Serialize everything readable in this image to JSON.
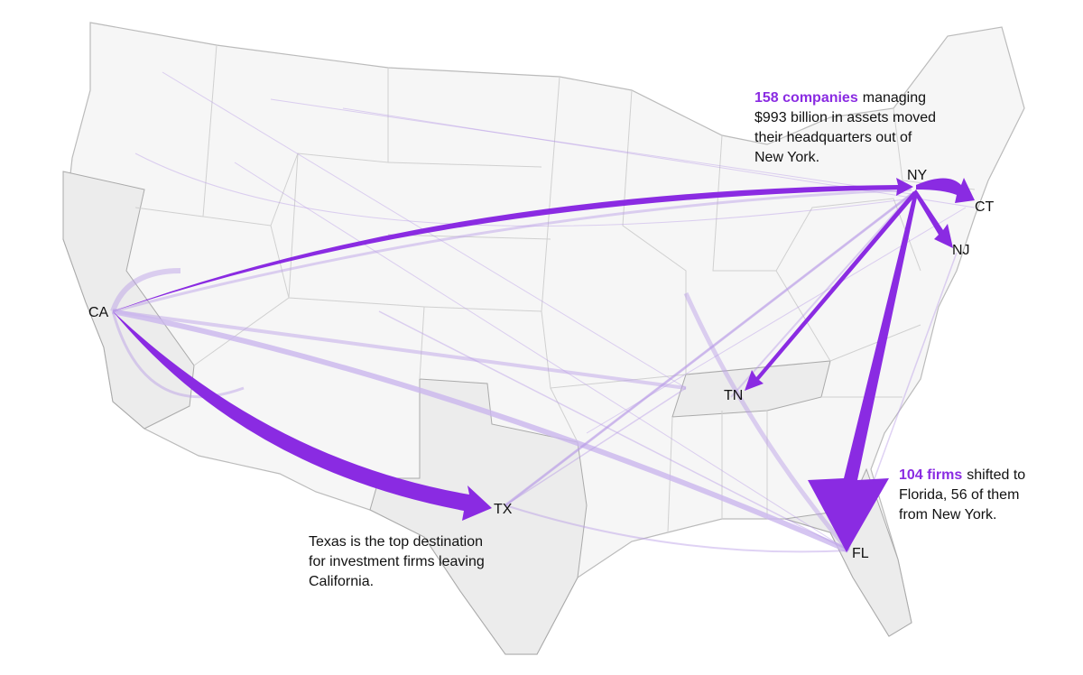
{
  "labels": [
    "NY",
    "CT",
    "NJ",
    "CA",
    "TN",
    "TX",
    "FL"
  ],
  "annotations": [
    {
      "highlight": "158 companies",
      "lines": [
        "managing",
        "$993 billion in assets moved",
        "their headquarters out of",
        "New York."
      ]
    },
    {
      "highlight": "104 firms",
      "lines": [
        "shifted to",
        "Florida, 56 of them",
        "from New York."
      ]
    },
    {
      "lines": [
        "Texas is the top destination",
        "for investment firms leaving",
        "California."
      ]
    }
  ]
}
